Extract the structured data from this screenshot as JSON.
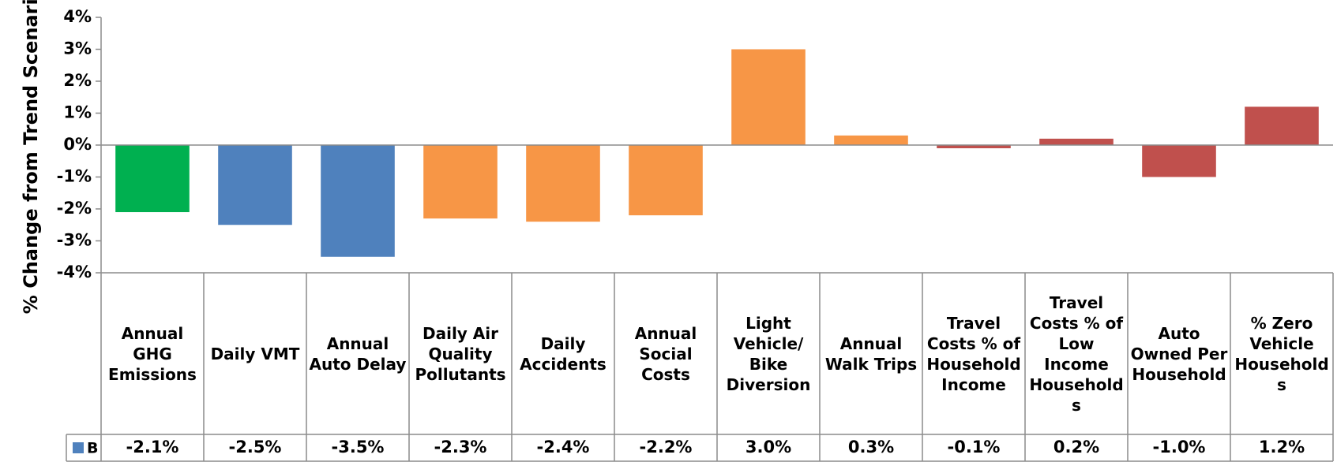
{
  "chart_data": {
    "type": "bar",
    "ylabel": "% Change from Trend Scenario",
    "categories": [
      "Annual GHG Emissions",
      "Daily VMT",
      "Annual Auto Delay",
      "Daily Air Quality Pollutants",
      "Daily Accidents",
      "Annual Social Costs",
      "Light Vehicle/ Bike Diversion",
      "Annual Walk Trips",
      "Travel Costs % of Household Income",
      "Travel Costs % of Low Income Households",
      "Auto Owned Per Household",
      "% Zero Vehicle Households"
    ],
    "series": [
      {
        "name": "B",
        "color": "#4f81bd",
        "values": [
          -2.1,
          -2.5,
          -3.5,
          -2.3,
          -2.4,
          -2.2,
          3.0,
          0.3,
          -0.1,
          0.2,
          -1.0,
          1.2
        ],
        "value_labels": [
          "-2.1%",
          "-2.5%",
          "-3.5%",
          "-2.3%",
          "-2.4%",
          "-2.2%",
          "3.0%",
          "0.3%",
          "-0.1%",
          "0.2%",
          "-1.0%",
          "1.2%"
        ],
        "colors": [
          "#00b050",
          "#4f81bd",
          "#4f81bd",
          "#f79646",
          "#f79646",
          "#f79646",
          "#f79646",
          "#f79646",
          "#c0504d",
          "#c0504d",
          "#c0504d",
          "#c0504d"
        ]
      }
    ],
    "ylim": [
      -4,
      4
    ],
    "yticks": [
      {
        "value": -4,
        "label": "-4%"
      },
      {
        "value": -3,
        "label": "-3%"
      },
      {
        "value": -2,
        "label": "-2%"
      },
      {
        "value": -1,
        "label": "-1%"
      },
      {
        "value": 0,
        "label": "0%"
      },
      {
        "value": 1,
        "label": "1%"
      },
      {
        "value": 2,
        "label": "2%"
      },
      {
        "value": 3,
        "label": "3%"
      },
      {
        "value": 4,
        "label": "4%"
      }
    ],
    "grid": false,
    "data_table": true
  }
}
